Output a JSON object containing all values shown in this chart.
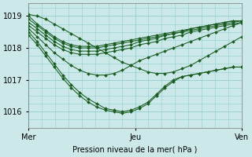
{
  "bg_color": "#cce8e8",
  "grid_color": "#8ecece",
  "line_color": "#1a5c20",
  "xlabel": "Pression niveau de la mer( hPa )",
  "xlim": [
    0,
    48
  ],
  "ylim": [
    1015.6,
    1019.4
  ],
  "yticks": [
    1016,
    1017,
    1018,
    1019
  ],
  "xtick_positions": [
    0,
    24,
    48
  ],
  "xtick_labels": [
    "Mer",
    "Jeu",
    "Ven"
  ],
  "lines": [
    [
      1019.0,
      1018.75,
      1018.55,
      1018.35,
      1018.2,
      1018.1,
      1018.05,
      1018.05,
      1018.05,
      1018.1,
      1018.15,
      1018.2,
      1018.25,
      1018.3,
      1018.35,
      1018.4,
      1018.45,
      1018.5,
      1018.55,
      1018.6,
      1018.65,
      1018.7,
      1018.75,
      1018.8,
      1018.85,
      1018.85
    ],
    [
      1018.9,
      1018.7,
      1018.5,
      1018.3,
      1018.15,
      1018.05,
      1018.0,
      1018.0,
      1018.0,
      1018.05,
      1018.1,
      1018.15,
      1018.2,
      1018.25,
      1018.3,
      1018.35,
      1018.4,
      1018.45,
      1018.5,
      1018.6,
      1018.65,
      1018.7,
      1018.75,
      1018.8,
      1018.85,
      1018.85
    ],
    [
      1018.8,
      1018.6,
      1018.4,
      1018.2,
      1018.05,
      1017.95,
      1017.9,
      1017.9,
      1017.9,
      1017.95,
      1018.0,
      1018.05,
      1018.1,
      1018.2,
      1018.25,
      1018.3,
      1018.4,
      1018.45,
      1018.5,
      1018.55,
      1018.6,
      1018.65,
      1018.7,
      1018.75,
      1018.8,
      1018.85
    ],
    [
      1018.7,
      1018.5,
      1018.3,
      1018.1,
      1017.95,
      1017.85,
      1017.8,
      1017.8,
      1017.8,
      1017.85,
      1017.9,
      1017.95,
      1018.0,
      1018.1,
      1018.15,
      1018.2,
      1018.3,
      1018.35,
      1018.4,
      1018.5,
      1018.55,
      1018.6,
      1018.65,
      1018.7,
      1018.75,
      1018.8
    ],
    [
      1018.6,
      1018.35,
      1018.1,
      1017.85,
      1017.65,
      1017.45,
      1017.3,
      1017.2,
      1017.15,
      1017.15,
      1017.2,
      1017.3,
      1017.45,
      1017.6,
      1017.7,
      1017.8,
      1017.9,
      1018.0,
      1018.1,
      1018.2,
      1018.3,
      1018.4,
      1018.5,
      1018.6,
      1018.7,
      1018.8
    ],
    [
      1018.5,
      1018.2,
      1017.85,
      1017.5,
      1017.15,
      1016.85,
      1016.6,
      1016.4,
      1016.25,
      1016.1,
      1016.05,
      1016.0,
      1016.05,
      1016.15,
      1016.3,
      1016.55,
      1016.8,
      1017.0,
      1017.1,
      1017.15,
      1017.2,
      1017.25,
      1017.3,
      1017.35,
      1017.4,
      1017.4
    ],
    [
      1018.4,
      1018.1,
      1017.75,
      1017.4,
      1017.05,
      1016.75,
      1016.5,
      1016.3,
      1016.15,
      1016.05,
      1016.0,
      1015.95,
      1016.0,
      1016.1,
      1016.25,
      1016.5,
      1016.75,
      1016.95,
      1017.1,
      1017.15,
      1017.2,
      1017.25,
      1017.3,
      1017.35,
      1017.4,
      1017.4
    ],
    [
      1019.05,
      1019.0,
      1018.9,
      1018.75,
      1018.6,
      1018.45,
      1018.3,
      1018.15,
      1018.0,
      1017.85,
      1017.7,
      1017.55,
      1017.45,
      1017.35,
      1017.25,
      1017.2,
      1017.2,
      1017.25,
      1017.35,
      1017.45,
      1017.6,
      1017.75,
      1017.9,
      1018.05,
      1018.2,
      1018.35
    ]
  ]
}
